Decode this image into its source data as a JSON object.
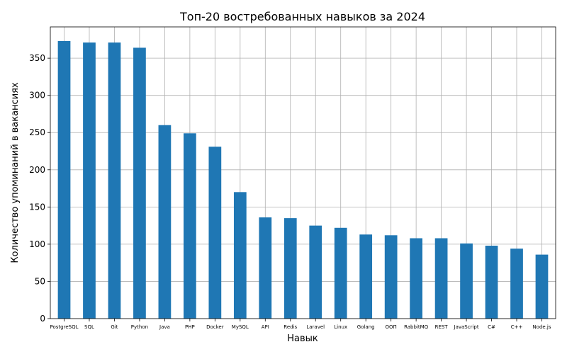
{
  "chart_data": {
    "type": "bar",
    "title": "Топ-20 востребованных навыков за 2024",
    "xlabel": "Навык",
    "ylabel": "Количество упоминаний в вакансиях",
    "categories": [
      "PostgreSQL",
      "SQL",
      "Git",
      "Python",
      "Java",
      "PHP",
      "Docker",
      "MySQL",
      "API",
      "Redis",
      "Laravel",
      "Linux",
      "Golang",
      "ООП",
      "RabbitMQ",
      "REST",
      "JavaScript",
      "C#",
      "C++",
      "Node.js"
    ],
    "values": [
      373,
      371,
      371,
      364,
      260,
      249,
      231,
      170,
      136,
      135,
      125,
      122,
      113,
      112,
      108,
      108,
      101,
      98,
      94,
      86
    ],
    "ylim": [
      0,
      392
    ],
    "yticks": [
      0,
      50,
      100,
      150,
      200,
      250,
      300,
      350
    ],
    "grid": true,
    "bar_color": "#1f77b4"
  }
}
